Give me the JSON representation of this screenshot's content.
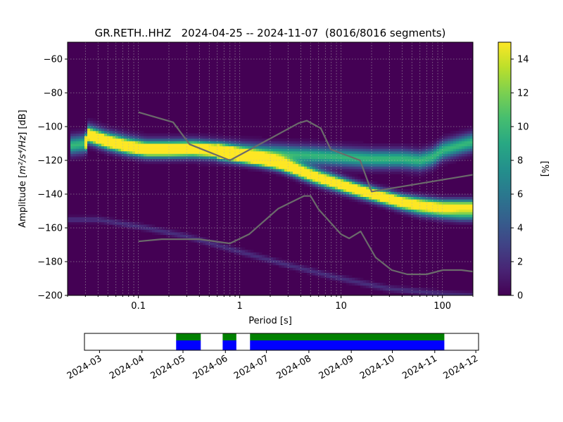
{
  "chart_data": [
    {
      "type": "heatmap",
      "title": "GR.RETH..HHZ   2024-04-25 -- 2024-11-07  (8016/8016 segments)",
      "xlabel": "Period [s]",
      "ylabel_prefix": "Amplitude [",
      "ylabel_math": "m²/s⁴/Hz",
      "ylabel_suffix": "] [dB]",
      "x_scale": "log",
      "xlim": [
        0.02,
        200
      ],
      "ylim": [
        -200,
        -50
      ],
      "xticks": [
        0.1,
        1,
        10,
        100
      ],
      "xtick_labels": [
        "0.1",
        "1",
        "10",
        "100"
      ],
      "yticks": [
        -200,
        -180,
        -160,
        -140,
        -120,
        -100,
        -80,
        -60
      ],
      "ytick_labels": [
        "−200",
        "−180",
        "−160",
        "−140",
        "−120",
        "−100",
        "−80",
        "−60"
      ],
      "grid": true,
      "colormap": "viridis",
      "colorbar": {
        "label": "[%]",
        "range": [
          0,
          15
        ],
        "ticks": [
          0,
          2,
          4,
          6,
          8,
          10,
          12,
          14
        ],
        "tick_labels": [
          "0",
          "2",
          "4",
          "6",
          "8",
          "10",
          "12",
          "14"
        ]
      },
      "ridges": [
        {
          "period": [
            0.022,
            0.03,
            0.032,
            0.05,
            0.08,
            0.12,
            0.2,
            0.35,
            0.6,
            1.0,
            2.0,
            5.0,
            10,
            20,
            40,
            60,
            80,
            100,
            150,
            200
          ],
          "db": [
            -111,
            -110,
            -104,
            -108,
            -111,
            -113,
            -113,
            -113,
            -114,
            -115,
            -116,
            -117,
            -118,
            -119,
            -119,
            -120,
            -118,
            -114,
            -111,
            -109
          ],
          "width_db": 3.5,
          "peak_percent": 10
        },
        {
          "period": [
            0.03,
            0.032,
            0.05,
            0.08,
            0.12,
            0.2,
            0.35,
            0.6,
            1.0,
            1.5,
            2.5,
            4.0,
            6.0,
            10,
            15,
            25,
            40,
            70,
            100,
            200
          ],
          "db": [
            -110,
            -105,
            -109,
            -112,
            -113.5,
            -113.5,
            -113,
            -114,
            -117,
            -119,
            -122,
            -127,
            -131,
            -135,
            -138,
            -141,
            -144,
            -146,
            -147,
            -147
          ],
          "width_db": 2.5,
          "peak_percent": 15
        },
        {
          "period": [
            0.6,
            1.0,
            2.0,
            4.0,
            8.0,
            15,
            25,
            40,
            60,
            100,
            150,
            200
          ],
          "db": [
            -115,
            -117,
            -120,
            -125,
            -131,
            -137,
            -142,
            -146,
            -149,
            -151,
            -152,
            -152
          ],
          "width_db": 2.5,
          "peak_percent": 9
        }
      ],
      "faint_line": {
        "period": [
          0.02,
          0.04,
          0.1,
          0.3,
          1.0,
          3.0,
          10,
          30,
          100,
          200
        ],
        "db": [
          -155,
          -155,
          -159,
          -165,
          -174,
          -182,
          -190,
          -196,
          -199,
          -200
        ],
        "peak_percent": 2
      },
      "nhnm": {
        "period": [
          0.1,
          0.22,
          0.32,
          0.8,
          3.8,
          4.6,
          6.3,
          7.9,
          15.4,
          20,
          354.8
        ],
        "db": [
          -91.5,
          -97.4,
          -110.5,
          -120.0,
          -98.0,
          -96.5,
          -101.0,
          -113.5,
          -120.0,
          -138.5,
          -126.0
        ]
      },
      "nlnm": {
        "period": [
          0.1,
          0.17,
          0.4,
          0.8,
          1.24,
          2.4,
          4.3,
          5.0,
          6.0,
          10,
          12,
          15.6,
          21.9,
          31.6,
          45,
          70,
          101,
          154,
          328,
          600
        ],
        "db": [
          -168.0,
          -166.7,
          -166.7,
          -169.2,
          -163.7,
          -148.6,
          -141.1,
          -141.1,
          -149.0,
          -163.8,
          -166.2,
          -162.1,
          -177.5,
          -185.0,
          -187.5,
          -187.5,
          -185.0,
          -185.0,
          -187.5,
          -184.4
        ]
      }
    },
    {
      "type": "timeline",
      "xlim": [
        "2024-02-19",
        "2024-12-03"
      ],
      "xtick_labels": [
        "2024-03",
        "2024-04",
        "2024-05",
        "2024-06",
        "2024-07",
        "2024-08",
        "2024-09",
        "2024-10",
        "2024-11",
        "2024-12"
      ],
      "xtick_dates": [
        "2024-03-01",
        "2024-04-01",
        "2024-05-01",
        "2024-06-01",
        "2024-07-01",
        "2024-08-01",
        "2024-09-01",
        "2024-10-01",
        "2024-11-01",
        "2024-12-01"
      ],
      "segments": [
        {
          "start": "2024-04-26",
          "end": "2024-05-14"
        },
        {
          "start": "2024-05-30",
          "end": "2024-06-09"
        },
        {
          "start": "2024-06-19",
          "end": "2024-11-08"
        }
      ],
      "colors": {
        "data": "#0000ff",
        "processed": "#008000"
      }
    }
  ]
}
